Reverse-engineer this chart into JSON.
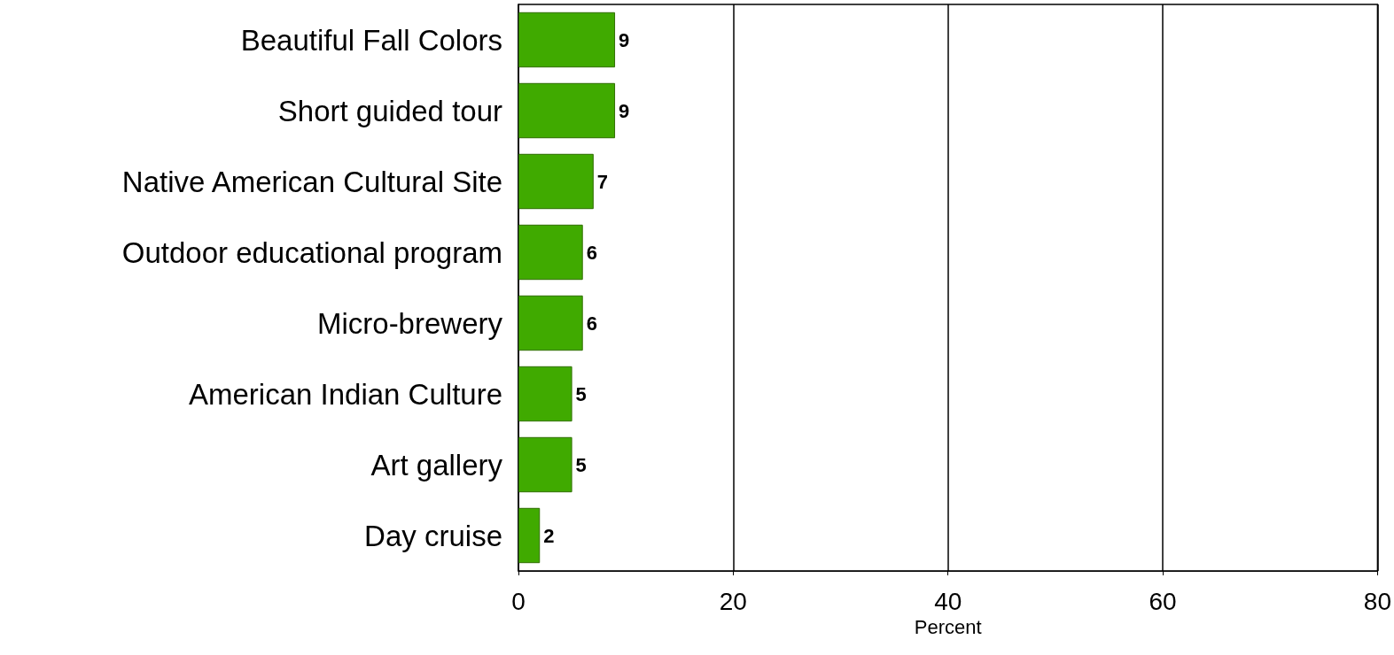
{
  "chart_data": {
    "type": "bar",
    "orientation": "horizontal",
    "xlabel": "Percent",
    "categories": [
      "Beautiful Fall Colors",
      "Short guided tour",
      "Native American Cultural Site",
      "Outdoor educational program",
      "Micro-brewery",
      "American Indian Culture",
      "Art gallery",
      "Day cruise"
    ],
    "values": [
      9,
      9,
      7,
      6,
      6,
      5,
      5,
      2
    ],
    "color": "#40aa00",
    "xlim": [
      0,
      80
    ],
    "xticks": [
      0,
      20,
      40,
      60,
      80
    ],
    "grid": "x",
    "data_labels": true
  }
}
